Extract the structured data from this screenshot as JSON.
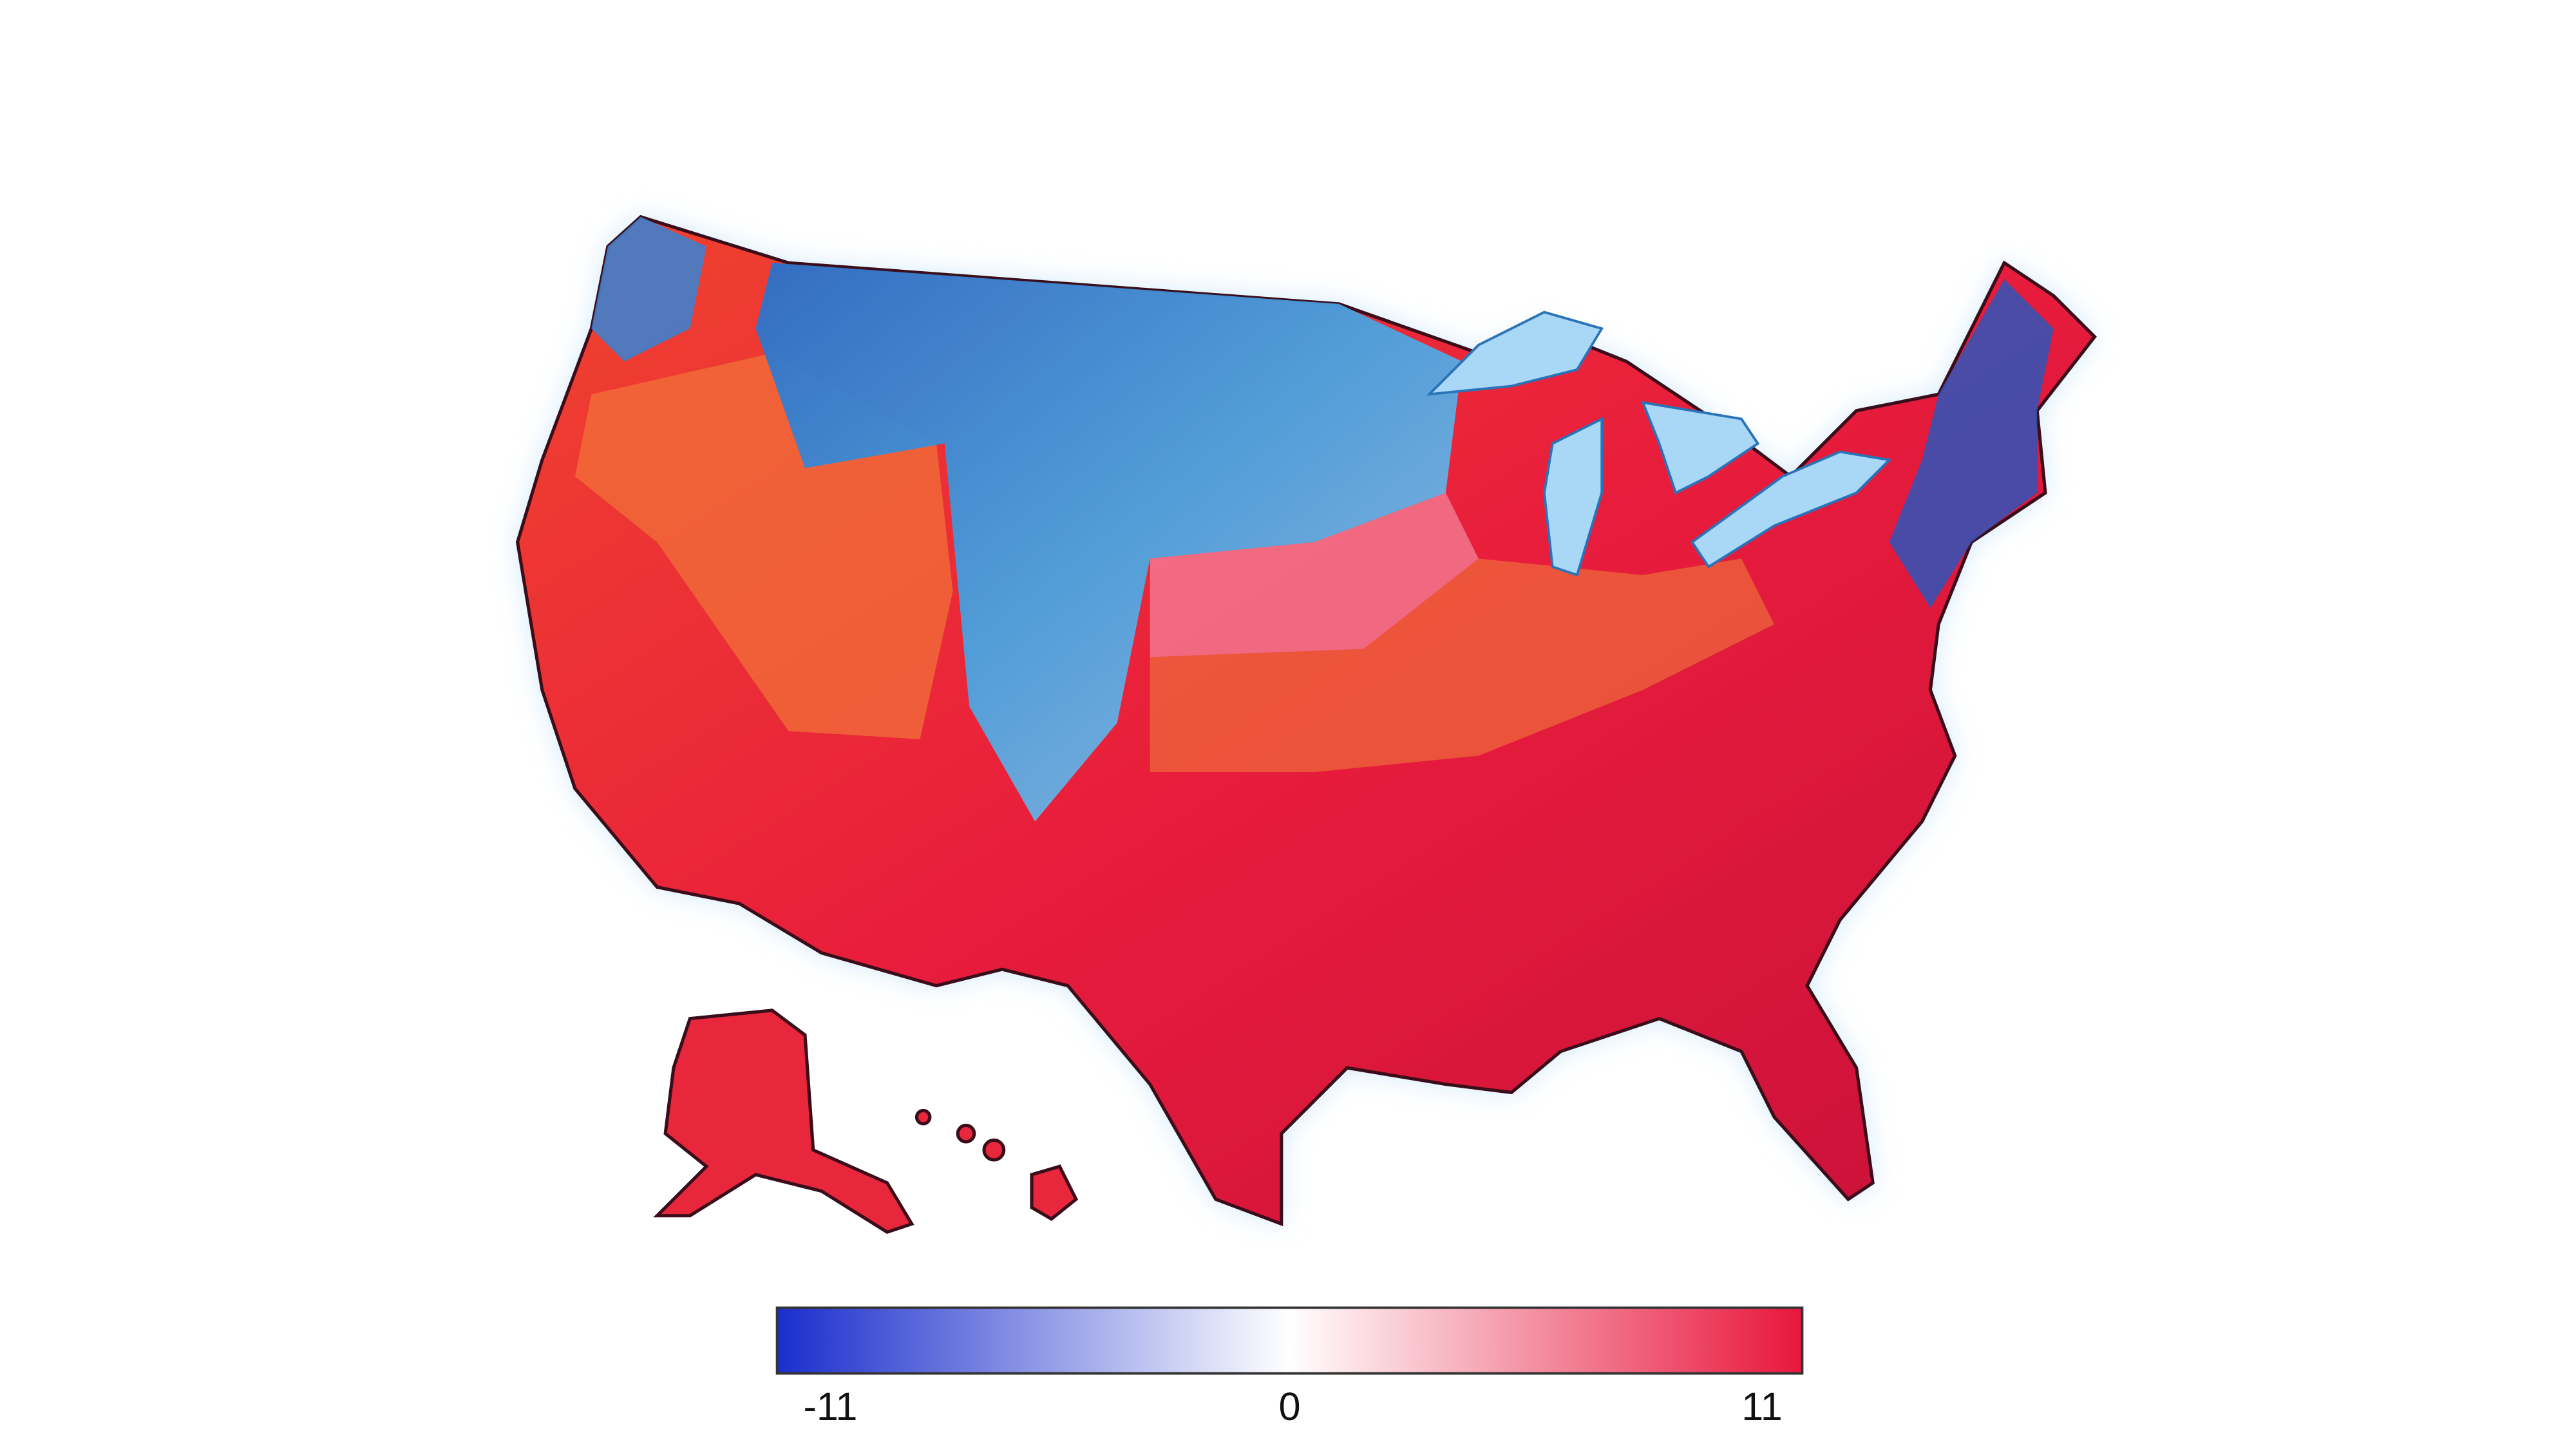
{
  "colorbar": {
    "range": [
      -11,
      11
    ],
    "ticks": [
      -11,
      0,
      11
    ],
    "colors": [
      "#1a2ecc",
      "#ffffff",
      "#e8163c"
    ]
  }
}
